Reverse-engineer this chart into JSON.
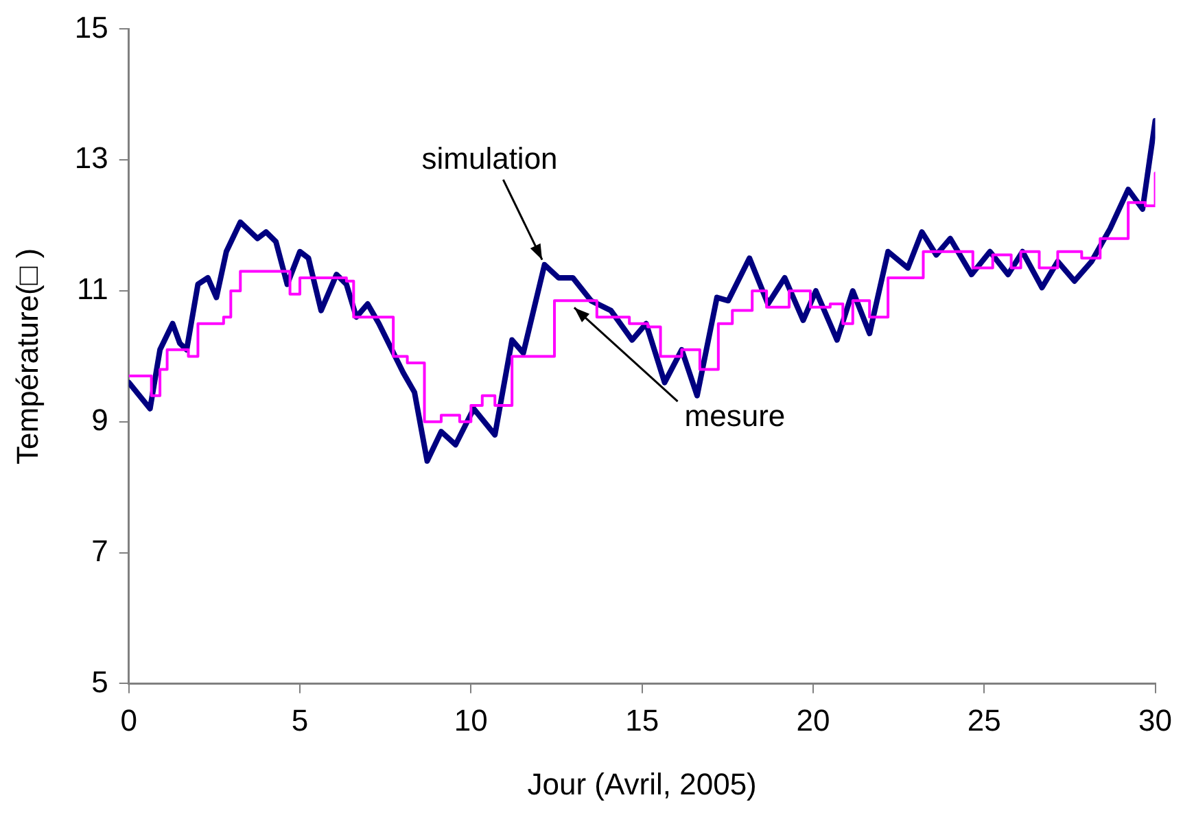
{
  "chart_data": {
    "type": "line",
    "xlabel": "Jour (Avril, 2005)",
    "ylabel": "Température(□ )",
    "xlim": [
      0,
      30
    ],
    "xticks": [
      0,
      5,
      10,
      15,
      20,
      25,
      30
    ],
    "ylim": [
      5,
      15
    ],
    "yticks": [
      5,
      7,
      9,
      11,
      13,
      15
    ],
    "grid": false,
    "legend": false,
    "marker": "none",
    "series": [
      {
        "type": "line",
        "color": "#000080",
        "x": [
          0,
          0.62,
          0.91,
          1.28,
          1.49,
          1.69,
          2.02,
          2.31,
          2.56,
          2.85,
          3.26,
          3.76,
          4.01,
          4.3,
          4.63,
          5,
          5.25,
          5.62,
          6.07,
          6.36,
          6.65,
          6.98,
          7.31,
          8.02,
          8.35,
          8.72,
          9.13,
          9.55,
          10.08,
          10.7,
          11.2,
          11.53,
          12.15,
          12.56,
          12.98,
          13.51,
          14.09,
          14.71,
          15.12,
          15.66,
          16.16,
          16.61,
          17.19,
          17.52,
          18.14,
          18.68,
          19.17,
          19.71,
          20.08,
          20.7,
          21.16,
          21.65,
          22.19,
          22.77,
          23.18,
          23.6,
          24.01,
          24.63,
          25.17,
          25.7,
          26.12,
          26.69,
          27.15,
          27.64,
          28.14,
          28.68,
          29.21,
          29.63,
          30
        ],
        "values": [
          9.6,
          9.2,
          10.1,
          10.5,
          10.2,
          10.1,
          11.1,
          11.2,
          10.9,
          11.6,
          12.05,
          11.8,
          11.9,
          11.75,
          11.1,
          11.6,
          11.5,
          10.7,
          11.25,
          11.1,
          10.6,
          10.8,
          10.5,
          9.75,
          9.45,
          8.4,
          8.85,
          8.65,
          9.2,
          8.8,
          10.25,
          10.05,
          11.4,
          11.2,
          11.2,
          10.85,
          10.7,
          10.25,
          10.5,
          9.6,
          10.1,
          9.4,
          10.9,
          10.85,
          11.5,
          10.8,
          11.2,
          10.55,
          11,
          10.25,
          11,
          10.35,
          11.6,
          11.35,
          11.9,
          11.55,
          11.8,
          11.25,
          11.6,
          11.25,
          11.6,
          11.05,
          11.45,
          11.15,
          11.45,
          11.95,
          12.55,
          12.25,
          13.6
        ]
      },
      {
        "type": "step",
        "color": "#ff00ff",
        "x": [
          0,
          0.45,
          0.66,
          0.91,
          1.12,
          1.53,
          1.74,
          2.02,
          2.77,
          2.98,
          3.26,
          4.3,
          4.71,
          5,
          6.36,
          6.57,
          7.27,
          7.73,
          8.14,
          8.64,
          9.13,
          9.67,
          10.0,
          10.33,
          10.7,
          11.2,
          11.74,
          12.44,
          13.3,
          13.68,
          14.21,
          14.63,
          15.17,
          15.54,
          16.16,
          16.69,
          17.23,
          17.64,
          18.22,
          18.64,
          19.3,
          19.92,
          20.5,
          20.87,
          21.16,
          21.65,
          22.19,
          22.82,
          23.22,
          24.13,
          24.67,
          25.25,
          25.79,
          26.07,
          26.61,
          27.15,
          27.85,
          28.39,
          29.21,
          29.71,
          30
        ],
        "values": [
          9.7,
          9.7,
          9.4,
          9.8,
          10.1,
          10.1,
          10,
          10.5,
          10.6,
          11,
          11.3,
          11.3,
          10.95,
          11.2,
          11.15,
          10.6,
          10.6,
          10,
          9.9,
          9,
          9.1,
          9,
          9.25,
          9.4,
          9.25,
          10,
          10,
          10.85,
          10.85,
          10.6,
          10.6,
          10.5,
          10.45,
          10,
          10.1,
          9.8,
          10.5,
          10.7,
          11,
          10.75,
          11,
          10.75,
          10.8,
          10.5,
          10.85,
          10.6,
          11.2,
          11.2,
          11.6,
          11.6,
          11.35,
          11.55,
          11.35,
          11.6,
          11.35,
          11.6,
          11.5,
          11.8,
          12.35,
          12.3,
          12.8
        ]
      }
    ],
    "annotations": [
      {
        "text": "simulation",
        "x": 12.15,
        "y": 11.4
      },
      {
        "text": "mesure",
        "x": 12.9,
        "y": 10.8
      }
    ]
  }
}
